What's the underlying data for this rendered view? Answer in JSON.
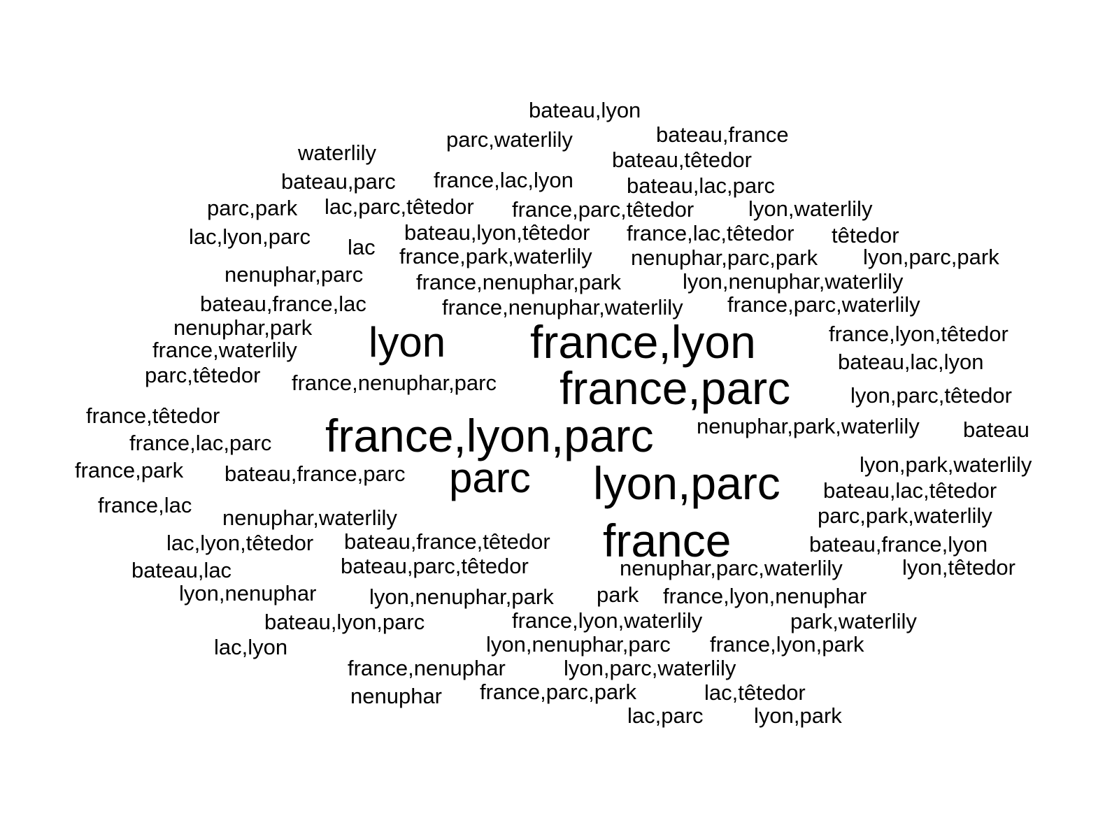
{
  "words": [
    {
      "text": "bateau,lyon",
      "size": "sm"
    },
    {
      "text": "bateau,france",
      "size": "sm"
    },
    {
      "text": "parc,waterlily",
      "size": "sm"
    },
    {
      "text": "waterlily",
      "size": "sm"
    },
    {
      "text": "bateau,têtedor",
      "size": "sm"
    },
    {
      "text": "bateau,parc",
      "size": "sm"
    },
    {
      "text": "france,lac,lyon",
      "size": "sm"
    },
    {
      "text": "bateau,lac,parc",
      "size": "sm"
    },
    {
      "text": "parc,park",
      "size": "sm"
    },
    {
      "text": "lac,parc,têtedor",
      "size": "sm"
    },
    {
      "text": "france,parc,têtedor",
      "size": "sm"
    },
    {
      "text": "lyon,waterlily",
      "size": "sm"
    },
    {
      "text": "lac,lyon,parc",
      "size": "sm"
    },
    {
      "text": "lac",
      "size": "sm"
    },
    {
      "text": "bateau,lyon,têtedor",
      "size": "sm"
    },
    {
      "text": "france,lac,têtedor",
      "size": "sm"
    },
    {
      "text": "têtedor",
      "size": "sm"
    },
    {
      "text": "france,park,waterlily",
      "size": "sm"
    },
    {
      "text": "nenuphar,parc,park",
      "size": "sm"
    },
    {
      "text": "lyon,parc,park",
      "size": "sm"
    },
    {
      "text": "nenuphar,parc",
      "size": "sm"
    },
    {
      "text": "france,nenuphar,park",
      "size": "sm"
    },
    {
      "text": "lyon,nenuphar,waterlily",
      "size": "sm"
    },
    {
      "text": "bateau,france,lac",
      "size": "sm"
    },
    {
      "text": "france,nenuphar,waterlily",
      "size": "sm"
    },
    {
      "text": "france,parc,waterlily",
      "size": "sm"
    },
    {
      "text": "nenuphar,park",
      "size": "sm"
    },
    {
      "text": "lyon",
      "size": "lg"
    },
    {
      "text": "france,lyon",
      "size": "xl"
    },
    {
      "text": "france,lyon,têtedor",
      "size": "sm"
    },
    {
      "text": "france,waterlily",
      "size": "sm"
    },
    {
      "text": "bateau,lac,lyon",
      "size": "sm"
    },
    {
      "text": "parc,têtedor",
      "size": "sm"
    },
    {
      "text": "france,nenuphar,parc",
      "size": "sm"
    },
    {
      "text": "france,parc",
      "size": "xl"
    },
    {
      "text": "lyon,parc,têtedor",
      "size": "sm"
    },
    {
      "text": "france,têtedor",
      "size": "sm"
    },
    {
      "text": "france,lyon,parc",
      "size": "xl"
    },
    {
      "text": "nenuphar,park,waterlily",
      "size": "sm"
    },
    {
      "text": "bateau",
      "size": "sm"
    },
    {
      "text": "france,lac,parc",
      "size": "sm"
    },
    {
      "text": "lyon,park,waterlily",
      "size": "sm"
    },
    {
      "text": "france,park",
      "size": "sm"
    },
    {
      "text": "bateau,france,parc",
      "size": "sm"
    },
    {
      "text": "parc",
      "size": "lg"
    },
    {
      "text": "lyon,parc",
      "size": "xl"
    },
    {
      "text": "bateau,lac,têtedor",
      "size": "sm"
    },
    {
      "text": "france,lac",
      "size": "sm"
    },
    {
      "text": "nenuphar,waterlily",
      "size": "sm"
    },
    {
      "text": "parc,park,waterlily",
      "size": "sm"
    },
    {
      "text": "france",
      "size": "xl"
    },
    {
      "text": "lac,lyon,têtedor",
      "size": "sm"
    },
    {
      "text": "bateau,france,têtedor",
      "size": "sm"
    },
    {
      "text": "bateau,france,lyon",
      "size": "sm"
    },
    {
      "text": "bateau,lac",
      "size": "sm"
    },
    {
      "text": "bateau,parc,têtedor",
      "size": "sm"
    },
    {
      "text": "nenuphar,parc,waterlily",
      "size": "sm"
    },
    {
      "text": "lyon,têtedor",
      "size": "sm"
    },
    {
      "text": "lyon,nenuphar",
      "size": "sm"
    },
    {
      "text": "lyon,nenuphar,park",
      "size": "sm"
    },
    {
      "text": "park",
      "size": "sm"
    },
    {
      "text": "france,lyon,nenuphar",
      "size": "sm"
    },
    {
      "text": "bateau,lyon,parc",
      "size": "sm"
    },
    {
      "text": "france,lyon,waterlily",
      "size": "sm"
    },
    {
      "text": "park,waterlily",
      "size": "sm"
    },
    {
      "text": "lac,lyon",
      "size": "sm"
    },
    {
      "text": "lyon,nenuphar,parc",
      "size": "sm"
    },
    {
      "text": "france,lyon,park",
      "size": "sm"
    },
    {
      "text": "france,nenuphar",
      "size": "sm"
    },
    {
      "text": "lyon,parc,waterlily",
      "size": "sm"
    },
    {
      "text": "nenuphar",
      "size": "sm"
    },
    {
      "text": "france,parc,park",
      "size": "sm"
    },
    {
      "text": "lac,têtedor",
      "size": "sm"
    },
    {
      "text": "lac,parc",
      "size": "sm"
    },
    {
      "text": "lyon,park",
      "size": "sm"
    }
  ]
}
